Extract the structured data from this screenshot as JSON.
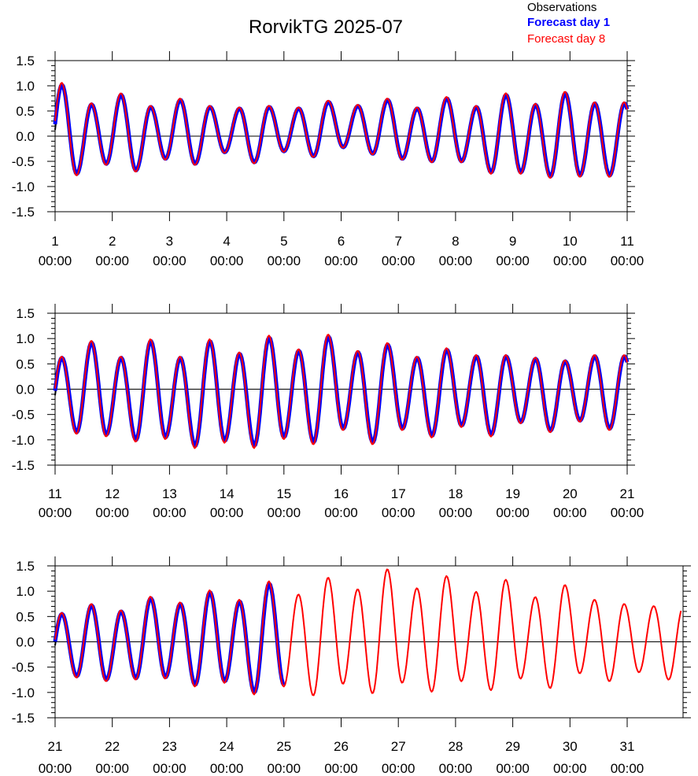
{
  "chart_data": {
    "type": "line",
    "title": "RorvikTG 2025-07",
    "legend": {
      "position": "top-right",
      "entries": [
        {
          "name": "Observations",
          "color": "#000000",
          "bold": false
        },
        {
          "name": "Forecast day 1",
          "color": "#0000ff",
          "bold": true
        },
        {
          "name": "Forecast day 8",
          "color": "#ff0000",
          "bold": false
        }
      ]
    },
    "colors": {
      "observations": "#000000",
      "forecast_day_1": "#0000ff",
      "forecast_day_8": "#ff0000"
    },
    "ylim": [
      -1.5,
      1.5
    ],
    "yticks": [
      "1.5",
      "1.0",
      "0.5",
      "0.0",
      "-0.5",
      "-1.0",
      "-1.5"
    ],
    "tide_period_hours": 12.42,
    "panels": [
      {
        "day_start": 1,
        "day_end": 11,
        "xtick_days": [
          "1",
          "2",
          "3",
          "4",
          "5",
          "6",
          "7",
          "8",
          "9",
          "10",
          "11"
        ],
        "xtick_time": "00:00",
        "high_water_peaks": [
          1.02,
          0.63,
          0.82,
          0.58,
          0.72,
          0.58,
          0.55,
          0.58,
          0.55,
          0.68,
          0.6,
          0.72,
          0.55,
          0.75,
          0.58,
          0.82,
          0.62,
          0.85,
          0.65
        ],
        "low_water_troughs": [
          -0.75,
          -0.55,
          -0.68,
          -0.45,
          -0.55,
          -0.32,
          -0.52,
          -0.3,
          -0.4,
          -0.22,
          -0.35,
          -0.45,
          -0.5,
          -0.5,
          -0.72,
          -0.72,
          -0.8,
          -0.78
        ],
        "observations_end_day": 8.15,
        "forecast_day_1_end_day": 11,
        "forecast_day_8_end_day": 11
      },
      {
        "day_start": 11,
        "day_end": 21,
        "xtick_days": [
          "11",
          "12",
          "13",
          "14",
          "15",
          "16",
          "17",
          "18",
          "19",
          "20",
          "21"
        ],
        "xtick_time": "00:00",
        "high_water_peaks": [
          0.62,
          0.92,
          0.62,
          0.95,
          0.62,
          0.95,
          0.7,
          1.02,
          0.76,
          1.04,
          0.73,
          0.88,
          0.62,
          0.78,
          0.65,
          0.65,
          0.6,
          0.55,
          0.65
        ],
        "low_water_troughs": [
          -0.85,
          -0.9,
          -1.0,
          -0.95,
          -1.12,
          -1.02,
          -1.12,
          -0.95,
          -1.05,
          -0.78,
          -1.05,
          -0.78,
          -0.92,
          -0.72,
          -0.9,
          -0.65,
          -0.82,
          -0.62,
          -0.78
        ],
        "observations_end_day": 21,
        "forecast_day_1_end_day": 21,
        "forecast_day_8_end_day": 21
      },
      {
        "day_start": 21,
        "day_end": 32,
        "xtick_days": [
          "21",
          "22",
          "23",
          "24",
          "25",
          "26",
          "27",
          "28",
          "29",
          "30",
          "31"
        ],
        "xtick_time": "00:00",
        "high_water_peaks": [
          0.55,
          0.72,
          0.6,
          0.86,
          0.75,
          0.98,
          0.8,
          1.15,
          0.9,
          1.22,
          1.0,
          1.38,
          1.02,
          1.25,
          0.95,
          1.18,
          0.85,
          1.08,
          0.8,
          0.72,
          0.68
        ],
        "low_water_troughs": [
          -0.68,
          -0.75,
          -0.72,
          -0.7,
          -0.85,
          -0.78,
          -1.0,
          -0.85,
          -1.02,
          -0.8,
          -0.98,
          -0.78,
          -0.95,
          -0.75,
          -0.92,
          -0.7,
          -0.88,
          -0.6,
          -0.75,
          -0.58,
          -0.72,
          -0.5
        ],
        "observations_end_day": 25.0,
        "forecast_day_1_end_day": 25.0,
        "forecast_day_8_end_day": 31.95
      }
    ]
  }
}
